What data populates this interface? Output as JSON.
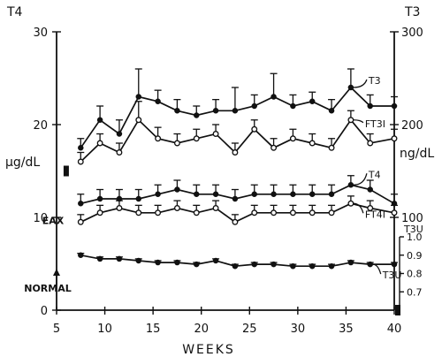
{
  "chart_data": {
    "type": "line",
    "x_axis": {
      "label": "WEEKS",
      "range": [
        5,
        40
      ],
      "ticks": [
        5,
        10,
        15,
        20,
        25,
        30,
        35,
        40
      ],
      "tick_labels": [
        "5",
        "10",
        "15",
        "20",
        "25",
        "30",
        "35",
        "40"
      ]
    },
    "left_axis": {
      "title": "T4",
      "unit": "µg/dL",
      "range": [
        0,
        30
      ],
      "ticks": [
        0,
        10,
        20,
        30
      ],
      "tick_labels": [
        "0",
        "10",
        "20",
        "30"
      ]
    },
    "right_axis": {
      "title": "T3",
      "unit": "ng/dL",
      "range": [
        0,
        300
      ],
      "ticks": [
        100,
        200,
        300
      ],
      "tick_labels": [
        "100",
        "200",
        "300"
      ]
    },
    "t3u_axis": {
      "title": "T3U",
      "range": [
        0.6,
        1.0
      ],
      "ticks": [
        0.7,
        0.8,
        0.9,
        1.0
      ],
      "tick_labels": [
        "0.7",
        "0.8",
        "0.9",
        "1.0"
      ]
    },
    "x": [
      7.5,
      9.5,
      11.5,
      13.5,
      15.5,
      17.5,
      19.5,
      21.5,
      23.5,
      25.5,
      27.5,
      29.5,
      31.5,
      33.5,
      35.5,
      37.5,
      40
    ],
    "series": [
      {
        "name": "T3",
        "axis": "right",
        "marker": "filled",
        "values": [
          175,
          205,
          190,
          230,
          225,
          215,
          210,
          215,
          215,
          220,
          230,
          220,
          225,
          215,
          240,
          220,
          220
        ],
        "error_upper": [
          10,
          15,
          15,
          30,
          12,
          12,
          10,
          12,
          25,
          12,
          25,
          12,
          10,
          12,
          20,
          12,
          10
        ]
      },
      {
        "name": "FT3I",
        "axis": "right",
        "marker": "open",
        "values": [
          160,
          180,
          170,
          205,
          185,
          180,
          185,
          190,
          170,
          195,
          175,
          185,
          180,
          175,
          205,
          180,
          185
        ],
        "error_upper": [
          10,
          10,
          10,
          20,
          12,
          10,
          10,
          10,
          10,
          10,
          10,
          10,
          10,
          10,
          10,
          10,
          10
        ]
      },
      {
        "name": "T4",
        "axis": "left",
        "marker": "filled",
        "values": [
          11.5,
          12.0,
          12.0,
          12.0,
          12.5,
          13.0,
          12.5,
          12.5,
          12.0,
          12.5,
          12.5,
          12.5,
          12.5,
          12.5,
          13.5,
          13.0,
          11.5
        ],
        "error_upper": [
          1.0,
          1.0,
          1.0,
          1.0,
          1.0,
          1.0,
          1.0,
          1.0,
          1.0,
          1.0,
          1.0,
          1.0,
          1.0,
          1.0,
          1.0,
          1.0,
          1.0
        ]
      },
      {
        "name": "FT4I",
        "axis": "left",
        "marker": "open",
        "values": [
          9.5,
          10.5,
          11.0,
          10.5,
          10.5,
          11.0,
          10.5,
          11.0,
          9.5,
          10.5,
          10.5,
          10.5,
          10.5,
          10.5,
          11.5,
          11.0,
          10.5
        ],
        "error_upper": [
          0.8,
          0.8,
          0.8,
          0.8,
          0.8,
          0.8,
          0.8,
          0.8,
          0.8,
          0.8,
          0.8,
          0.8,
          0.8,
          0.8,
          0.8,
          0.8,
          0.8
        ]
      },
      {
        "name": "T3U",
        "axis": "t3u",
        "marker": "filled",
        "values": [
          0.9,
          0.88,
          0.88,
          0.87,
          0.86,
          0.86,
          0.85,
          0.87,
          0.84,
          0.85,
          0.85,
          0.84,
          0.84,
          0.84,
          0.86,
          0.85,
          0.85
        ],
        "error_upper": [
          0.01,
          0.01,
          0.01,
          0.01,
          0.01,
          0.01,
          0.01,
          0.01,
          0.01,
          0.01,
          0.01,
          0.01,
          0.01,
          0.01,
          0.01,
          0.01,
          0.01
        ]
      }
    ],
    "series_labels": [
      "T3",
      "FT3I",
      "T4",
      "FT4I",
      "T3U"
    ],
    "annotations": [
      {
        "text": "EAX",
        "x": 5.5,
        "value": 9.3,
        "axis": "left"
      },
      {
        "text": "NORMAL",
        "x": 6.5,
        "value": 2.0,
        "axis": "left"
      }
    ],
    "normal_markers": [
      {
        "axis": "left",
        "x": 6,
        "value": 15
      },
      {
        "axis": "right",
        "x": 42.5,
        "value": 0
      }
    ]
  }
}
